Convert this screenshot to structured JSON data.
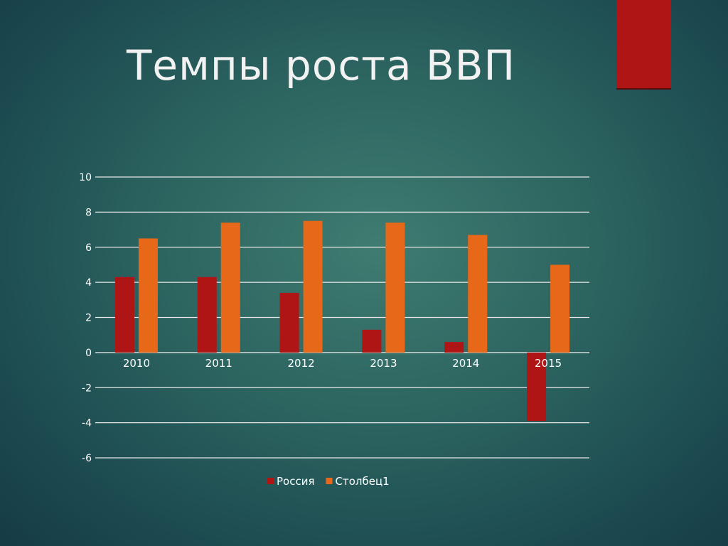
{
  "slide": {
    "title": "Темпы роста ВВП"
  },
  "colors": {
    "accent_block": "#b01515",
    "series_russia": "#b01515",
    "series_col1": "#e8681a",
    "gridline": "#e8e8e8",
    "text": "#ffffff"
  },
  "chart_data": {
    "type": "bar",
    "title": "",
    "xlabel": "",
    "ylabel": "",
    "categories": [
      "2010",
      "2011",
      "2012",
      "2013",
      "2014",
      "2015"
    ],
    "series": [
      {
        "name": "Россия",
        "values": [
          4.3,
          4.3,
          3.4,
          1.3,
          0.6,
          -3.9
        ]
      },
      {
        "name": "Столбец1",
        "values": [
          6.5,
          7.4,
          7.5,
          7.4,
          6.7,
          5.0
        ]
      }
    ],
    "ylim": [
      -6,
      10
    ],
    "yticks": [
      10,
      8,
      6,
      4,
      2,
      0,
      -2,
      -4,
      -6
    ],
    "grid": true,
    "legend_position": "bottom"
  }
}
